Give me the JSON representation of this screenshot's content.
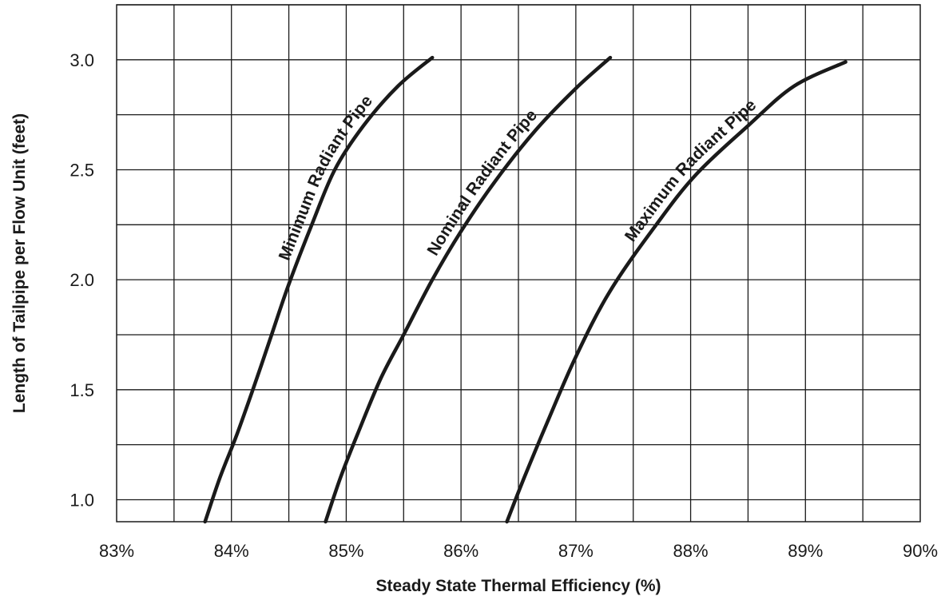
{
  "chart_data": {
    "type": "line",
    "title": "",
    "xlabel": "Steady State Thermal Efficiency (%)",
    "ylabel": "Length of Tailpipe per Flow Unit (feet)",
    "xlim": [
      83,
      90
    ],
    "ylim": [
      0.9,
      3.25
    ],
    "x_ticks": [
      83,
      84,
      85,
      86,
      87,
      88,
      89,
      90
    ],
    "x_tick_labels": [
      "83%",
      "84%",
      "85%",
      "86%",
      "87%",
      "88%",
      "89%",
      "90%"
    ],
    "y_ticks": [
      1.0,
      1.5,
      2.0,
      2.5,
      3.0
    ],
    "y_tick_labels": [
      "1.0",
      "1.5",
      "2.0",
      "2.5",
      "3.0"
    ],
    "grid": true,
    "legend": "none (series labeled inline along curves)",
    "series": [
      {
        "name": "Minimum Radiant Pipe",
        "points": [
          [
            83.77,
            0.9
          ],
          [
            83.9,
            1.1
          ],
          [
            84.05,
            1.3
          ],
          [
            84.22,
            1.55
          ],
          [
            84.35,
            1.75
          ],
          [
            84.5,
            1.98
          ],
          [
            84.7,
            2.25
          ],
          [
            84.9,
            2.5
          ],
          [
            85.15,
            2.7
          ],
          [
            85.45,
            2.88
          ],
          [
            85.75,
            3.01
          ]
        ]
      },
      {
        "name": "Nominal Radiant Pipe",
        "points": [
          [
            84.82,
            0.9
          ],
          [
            84.95,
            1.1
          ],
          [
            85.1,
            1.3
          ],
          [
            85.3,
            1.55
          ],
          [
            85.5,
            1.75
          ],
          [
            85.75,
            2.0
          ],
          [
            86.0,
            2.22
          ],
          [
            86.3,
            2.45
          ],
          [
            86.65,
            2.68
          ],
          [
            87.0,
            2.87
          ],
          [
            87.3,
            3.01
          ]
        ]
      },
      {
        "name": "Maximum Radiant Pipe",
        "points": [
          [
            86.4,
            0.9
          ],
          [
            86.55,
            1.1
          ],
          [
            86.75,
            1.35
          ],
          [
            87.0,
            1.65
          ],
          [
            87.3,
            1.95
          ],
          [
            87.7,
            2.25
          ],
          [
            88.05,
            2.48
          ],
          [
            88.5,
            2.7
          ],
          [
            88.9,
            2.88
          ],
          [
            89.35,
            2.99
          ]
        ]
      }
    ]
  }
}
